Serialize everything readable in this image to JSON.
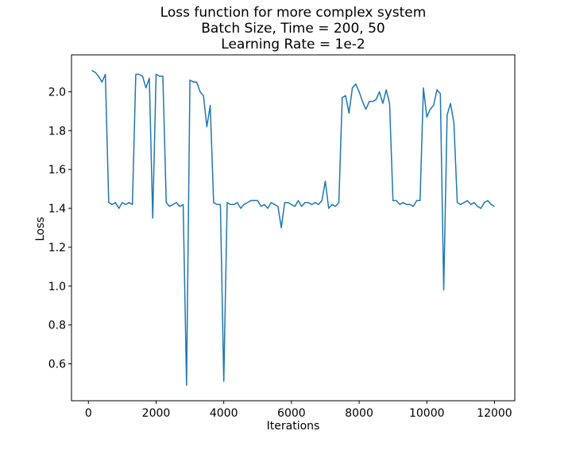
{
  "chart_data": {
    "type": "line",
    "title_lines": [
      "Loss function for more complex system",
      "Batch Size, Time = 200, 50",
      "Learning Rate = 1e-2"
    ],
    "xlabel": "Iterations",
    "ylabel": "Loss",
    "xlim": [
      -500,
      12600
    ],
    "ylim": [
      0.41,
      2.19
    ],
    "xticks": [
      0,
      2000,
      4000,
      6000,
      8000,
      10000,
      12000
    ],
    "yticks": [
      0.6,
      0.8,
      1.0,
      1.2,
      1.4,
      1.6,
      1.8,
      2.0
    ],
    "ytick_labels": [
      "0.6",
      "0.8",
      "1.0",
      "1.2",
      "1.4",
      "1.6",
      "1.8",
      "2.0"
    ],
    "grid": false,
    "legend": "none",
    "line_color": "#1f77b4",
    "series": [
      {
        "x": [
          100,
          200,
          300,
          400,
          500,
          600,
          700,
          800,
          900,
          1000,
          1100,
          1200,
          1300,
          1400,
          1500,
          1600,
          1700,
          1800,
          1900,
          2000,
          2100,
          2200,
          2300,
          2400,
          2500,
          2600,
          2700,
          2800,
          2900,
          3000,
          3100,
          3200,
          3300,
          3400,
          3500,
          3600,
          3700,
          3800,
          3900,
          4000,
          4100,
          4200,
          4300,
          4400,
          4500,
          4600,
          4700,
          4800,
          4900,
          5000,
          5100,
          5200,
          5300,
          5400,
          5500,
          5600,
          5700,
          5800,
          5900,
          6000,
          6100,
          6200,
          6300,
          6400,
          6500,
          6600,
          6700,
          6800,
          6900,
          7000,
          7100,
          7200,
          7300,
          7400,
          7500,
          7600,
          7700,
          7800,
          7900,
          8000,
          8100,
          8200,
          8300,
          8400,
          8500,
          8600,
          8700,
          8800,
          8900,
          9000,
          9100,
          9200,
          9300,
          9400,
          9500,
          9600,
          9700,
          9800,
          9900,
          10000,
          10100,
          10200,
          10300,
          10400,
          10500,
          10600,
          10700,
          10800,
          10900,
          11000,
          11100,
          11200,
          11300,
          11400,
          11500,
          11600,
          11700,
          11800,
          11900,
          12000
        ],
        "y": [
          2.11,
          2.1,
          2.08,
          2.05,
          2.09,
          1.43,
          1.42,
          1.43,
          1.4,
          1.43,
          1.42,
          1.43,
          1.42,
          2.09,
          2.09,
          2.08,
          2.02,
          2.07,
          1.35,
          2.09,
          2.08,
          2.08,
          1.43,
          1.41,
          1.42,
          1.43,
          1.41,
          1.42,
          0.49,
          2.06,
          2.05,
          2.05,
          2.0,
          1.98,
          1.82,
          1.93,
          1.43,
          1.42,
          1.42,
          0.51,
          1.43,
          1.42,
          1.42,
          1.43,
          1.4,
          1.42,
          1.43,
          1.44,
          1.44,
          1.44,
          1.41,
          1.42,
          1.4,
          1.43,
          1.42,
          1.41,
          1.3,
          1.43,
          1.43,
          1.42,
          1.41,
          1.44,
          1.41,
          1.43,
          1.43,
          1.42,
          1.43,
          1.42,
          1.44,
          1.54,
          1.4,
          1.42,
          1.41,
          1.43,
          1.97,
          1.98,
          1.89,
          2.02,
          2.04,
          2.0,
          1.95,
          1.91,
          1.95,
          1.95,
          1.96,
          2.0,
          1.94,
          2.01,
          1.94,
          1.44,
          1.44,
          1.42,
          1.43,
          1.42,
          1.42,
          1.41,
          1.44,
          1.44,
          2.02,
          1.87,
          1.91,
          1.93,
          2.01,
          1.99,
          0.98,
          1.88,
          1.94,
          1.84,
          1.43,
          1.42,
          1.43,
          1.44,
          1.42,
          1.43,
          1.41,
          1.4,
          1.43,
          1.44,
          1.42,
          1.41
        ]
      }
    ]
  }
}
